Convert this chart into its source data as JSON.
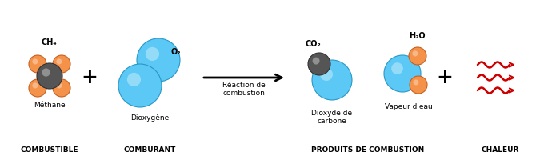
{
  "bg_color": "#ffffff",
  "blue": "#5BC8F5",
  "blue_dark": "#2A98C5",
  "orange": "#F5924A",
  "orange_dark": "#C56020",
  "gray_dark": "#555555",
  "gray_darker": "#333333",
  "red": "#CC0000",
  "black": "#000000",
  "labels_bottom": [
    "COMBUSTIBLE",
    "COMBURANT",
    "PRODUITS DE COMBUSTION",
    "CHALEUR"
  ],
  "label_ch4": "CH₄",
  "label_methane": "Méthane",
  "label_o2": "O₂",
  "label_dioxygene": "Dioxygène",
  "label_reaction": "Réaction de\ncombustion",
  "label_co2": "CO₂",
  "label_dioxyde": "Dioxyde de\ncarbone",
  "label_h2o": "H₂O",
  "label_vapeur": "Vapeur d'eau"
}
